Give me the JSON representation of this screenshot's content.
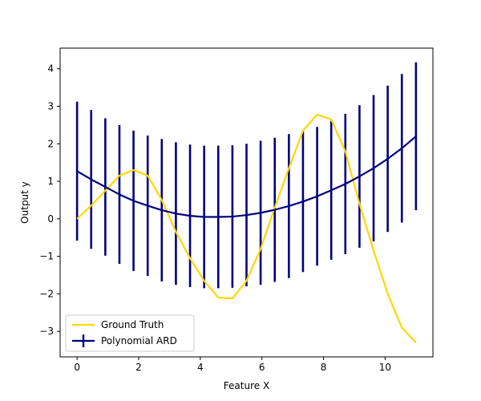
{
  "chart_data": {
    "type": "line",
    "title": "",
    "xlabel": "Feature X",
    "ylabel": "Output y",
    "xlim": [
      -0.55,
      11.55
    ],
    "ylim": [
      -3.68,
      4.55
    ],
    "xticks": [
      0,
      2,
      4,
      6,
      8,
      10
    ],
    "yticks": [
      -3,
      -2,
      -1,
      0,
      1,
      2,
      3,
      4
    ],
    "grid": false,
    "legend_position": "lower-left",
    "series": [
      {
        "name": "Ground Truth",
        "color": "#ffd700",
        "x": [
          0,
          0.458,
          0.917,
          1.375,
          1.833,
          2.292,
          2.75,
          3.208,
          3.667,
          4.125,
          4.583,
          5.042,
          5.5,
          5.958,
          6.417,
          6.875,
          7.333,
          7.792,
          8.25,
          8.708,
          9.167,
          9.625,
          10.083,
          10.542,
          11
        ],
        "y": [
          0,
          0.35,
          0.75,
          1.15,
          1.3,
          1.15,
          0.5,
          -0.35,
          -1.05,
          -1.65,
          -2.1,
          -2.12,
          -1.65,
          -0.8,
          0.3,
          1.35,
          2.35,
          2.78,
          2.65,
          1.8,
          0.4,
          -0.85,
          -2.0,
          -2.9,
          -3.3
        ]
      },
      {
        "name": "Polynomial ARD",
        "color": "#000080",
        "x": [
          0,
          0.458,
          0.917,
          1.375,
          1.833,
          2.292,
          2.75,
          3.208,
          3.667,
          4.125,
          4.583,
          5.042,
          5.5,
          5.958,
          6.417,
          6.875,
          7.333,
          7.792,
          8.25,
          8.708,
          9.167,
          9.625,
          10.083,
          10.542,
          11
        ],
        "y": [
          1.27,
          1.05,
          0.85,
          0.65,
          0.48,
          0.35,
          0.23,
          0.14,
          0.08,
          0.05,
          0.05,
          0.06,
          0.1,
          0.16,
          0.24,
          0.34,
          0.46,
          0.6,
          0.76,
          0.93,
          1.13,
          1.35,
          1.6,
          1.88,
          2.2
        ],
        "error": [
          1.85,
          1.85,
          1.83,
          1.85,
          1.87,
          1.87,
          1.9,
          1.9,
          1.9,
          1.9,
          1.9,
          1.9,
          1.9,
          1.92,
          1.92,
          1.92,
          1.88,
          1.85,
          1.85,
          1.87,
          1.9,
          1.95,
          1.95,
          1.98,
          1.97
        ]
      }
    ]
  }
}
